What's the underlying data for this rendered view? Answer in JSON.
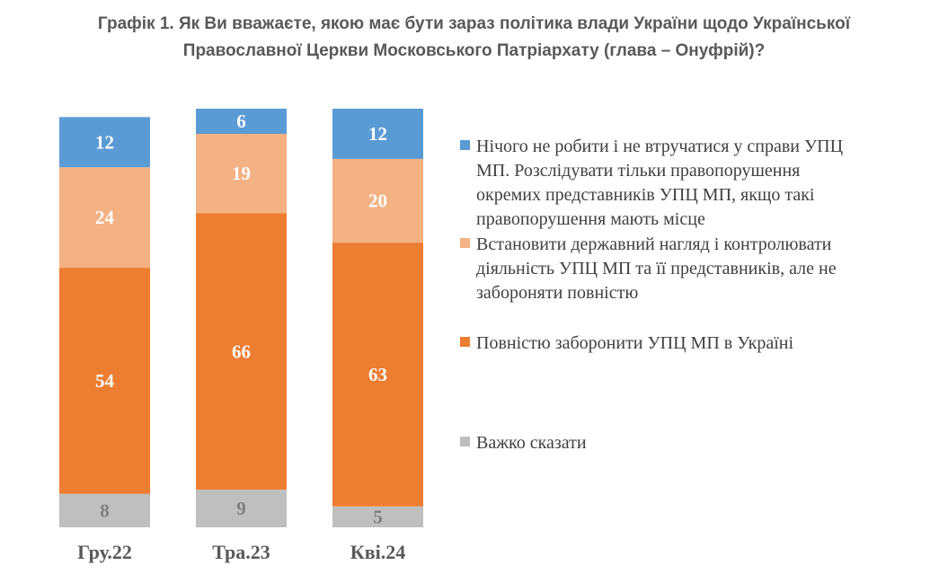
{
  "chart_data": {
    "type": "bar",
    "stacked": true,
    "title_lines": [
      "Графік 1. Як Ви вважаєте, якою має бути зараз політика влади України щодо Української",
      "Православної Церкви Московського Патріархату (глава – Онуфрій)?"
    ],
    "categories": [
      "Гру.22",
      "Тра.23",
      "Кві.24"
    ],
    "series": [
      {
        "name_lines": [
          "Нічого не робити і не втручатися у справи УПЦ",
          "МП. Розслідувати тільки правопорушення",
          "окремих представників УПЦ МП, якщо такі",
          "правопорушення мають місце"
        ],
        "values": [
          12,
          6,
          12
        ],
        "color": "#5B9BD5",
        "label_color": "#ffffff"
      },
      {
        "name_lines": [
          "Встановити державний нагляд і контролювати",
          "діяльність УПЦ МП та її представників, але не",
          "забороняти повністю"
        ],
        "values": [
          24,
          19,
          20
        ],
        "color": "#F4B183",
        "label_color": "#ffffff"
      },
      {
        "name_lines": [
          "Повністю заборонити УПЦ МП в Україні"
        ],
        "values": [
          54,
          66,
          63
        ],
        "color": "#ED7D31",
        "label_color": "#ffffff"
      },
      {
        "name_lines": [
          "Важко сказати"
        ],
        "values": [
          8,
          9,
          5
        ],
        "color": "#BFBFBF",
        "label_color": "#7F7F7F"
      }
    ],
    "legend": "right",
    "grid": false
  }
}
